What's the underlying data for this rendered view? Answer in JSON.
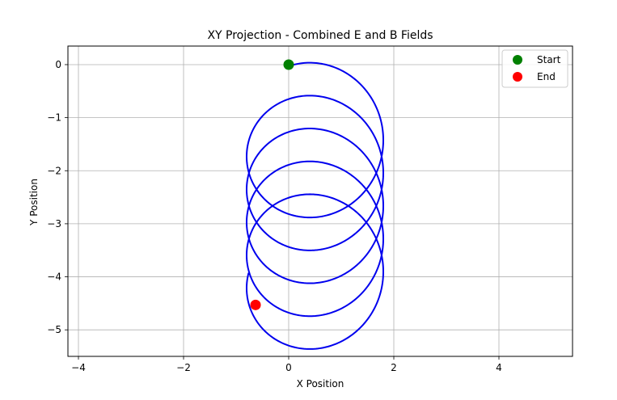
{
  "chart_data": {
    "type": "line",
    "title": "XY Projection - Combined E and B Fields",
    "xlabel": "X Position",
    "ylabel": "Y Position",
    "xlim": [
      -4.2,
      5.4
    ],
    "ylim": [
      -5.5,
      0.35
    ],
    "x_ticks": [
      -4,
      -2,
      0,
      2,
      4
    ],
    "x_tick_labels": [
      "−4",
      "−2",
      "0",
      "2",
      "4"
    ],
    "y_ticks": [
      0,
      -1,
      -2,
      -3,
      -4,
      -5
    ],
    "y_tick_labels": [
      "0",
      "−1",
      "−2",
      "−3",
      "−4",
      "−5"
    ],
    "grid": true,
    "legend_position": "top-right",
    "trajectory": {
      "color": "#0000ee",
      "guiding_center_start": [
        0.5,
        -1.23
      ],
      "radius": 1.3,
      "drift_per_turn": -0.62,
      "turns": 4.85
    },
    "markers": [
      {
        "name": "Start",
        "x": 0.0,
        "y": 0.0,
        "color": "#008000"
      },
      {
        "name": "End",
        "x": -0.63,
        "y": -4.53,
        "color": "#ff0000"
      }
    ]
  }
}
